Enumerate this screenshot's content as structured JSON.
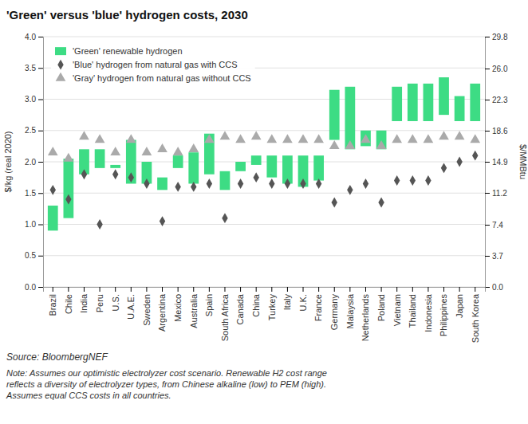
{
  "chart_data": {
    "type": "bar",
    "title": "'Green' versus 'blue' hydrogen costs, 2030",
    "ylabel": "$/kg (real 2020)",
    "y2label": "$/MMBtu",
    "categories": [
      "Brazil",
      "Chile",
      "India",
      "Peru",
      "U.S.",
      "U.A.E.",
      "Sweden",
      "Argentina",
      "Mexico",
      "Australia",
      "Spain",
      "South Africa",
      "Canada",
      "China",
      "Turkey",
      "Italy",
      "U.K.",
      "France",
      "Germany",
      "Malaysia",
      "Netherlands",
      "Poland",
      "Vietnam",
      "Thailand",
      "Indonesia",
      "Philippines",
      "Japan",
      "South Korea"
    ],
    "series": [
      {
        "name": "'Green' renewable hydrogen",
        "type": "bar",
        "color": "#3ddc84",
        "low": [
          0.9,
          1.1,
          1.8,
          1.9,
          1.9,
          1.65,
          1.65,
          1.55,
          1.9,
          1.65,
          1.8,
          1.55,
          1.85,
          1.95,
          1.75,
          1.65,
          1.6,
          1.7,
          2.35,
          2.2,
          2.25,
          2.2,
          2.65,
          2.65,
          2.65,
          2.75,
          2.65,
          2.65
        ],
        "high": [
          1.3,
          2.05,
          2.2,
          2.2,
          1.95,
          2.35,
          2.0,
          1.75,
          2.1,
          2.15,
          2.45,
          1.85,
          2.0,
          2.1,
          2.1,
          2.1,
          2.1,
          2.1,
          3.15,
          3.2,
          2.5,
          2.5,
          3.2,
          3.25,
          3.25,
          3.35,
          3.05,
          3.25
        ]
      },
      {
        "name": "'Blue' hydrogen from natural gas with CCS",
        "type": "scatter",
        "marker": "diamond",
        "color": "#555555",
        "values": [
          1.55,
          1.4,
          1.8,
          1.0,
          1.8,
          1.75,
          1.65,
          1.05,
          1.6,
          1.6,
          1.65,
          1.1,
          1.65,
          1.75,
          1.65,
          1.65,
          1.65,
          1.65,
          1.35,
          1.55,
          1.65,
          1.35,
          1.7,
          1.7,
          1.7,
          1.9,
          2.0,
          2.1
        ]
      },
      {
        "name": "'Gray' hydrogen from natural gas without CCS",
        "type": "scatter",
        "marker": "triangle",
        "color": "#aaaaaa",
        "values": [
          2.15,
          2.05,
          2.4,
          2.35,
          2.15,
          2.35,
          2.15,
          2.2,
          2.15,
          2.2,
          2.35,
          2.4,
          2.35,
          2.4,
          2.35,
          2.35,
          2.35,
          2.35,
          2.25,
          2.25,
          2.35,
          2.25,
          2.35,
          2.35,
          2.35,
          2.4,
          2.4,
          2.35
        ]
      }
    ],
    "ylim": [
      0,
      4.0
    ],
    "yticks": [
      {
        "value": 0,
        "label": "0.0"
      },
      0.5,
      {
        "value": 1,
        "label": "1.0"
      },
      1.5,
      {
        "value": 2,
        "label": "2.0"
      },
      2.5,
      {
        "value": 3,
        "label": "3.0"
      },
      3.5,
      {
        "value": 4,
        "label": "4.0"
      }
    ],
    "y2lim": [
      0,
      29.8
    ],
    "y2ticks": [
      {
        "value": 0,
        "label": "0.0"
      },
      3.7,
      7.4,
      11.2,
      14.9,
      18.6,
      22.3,
      {
        "value": 26,
        "label": "26.0"
      },
      29.8
    ],
    "grid": true,
    "legend": "upper left",
    "annotations": [
      "Source: BloombergNEF",
      "Note: Assumes our optimistic electrolyzer cost scenario. Renewable H2 cost range\nreflects a diversity of electrolyzer types, from Chinese alkaline (low) to PEM (high).\nAssumes equal CCS costs in all countries."
    ]
  }
}
